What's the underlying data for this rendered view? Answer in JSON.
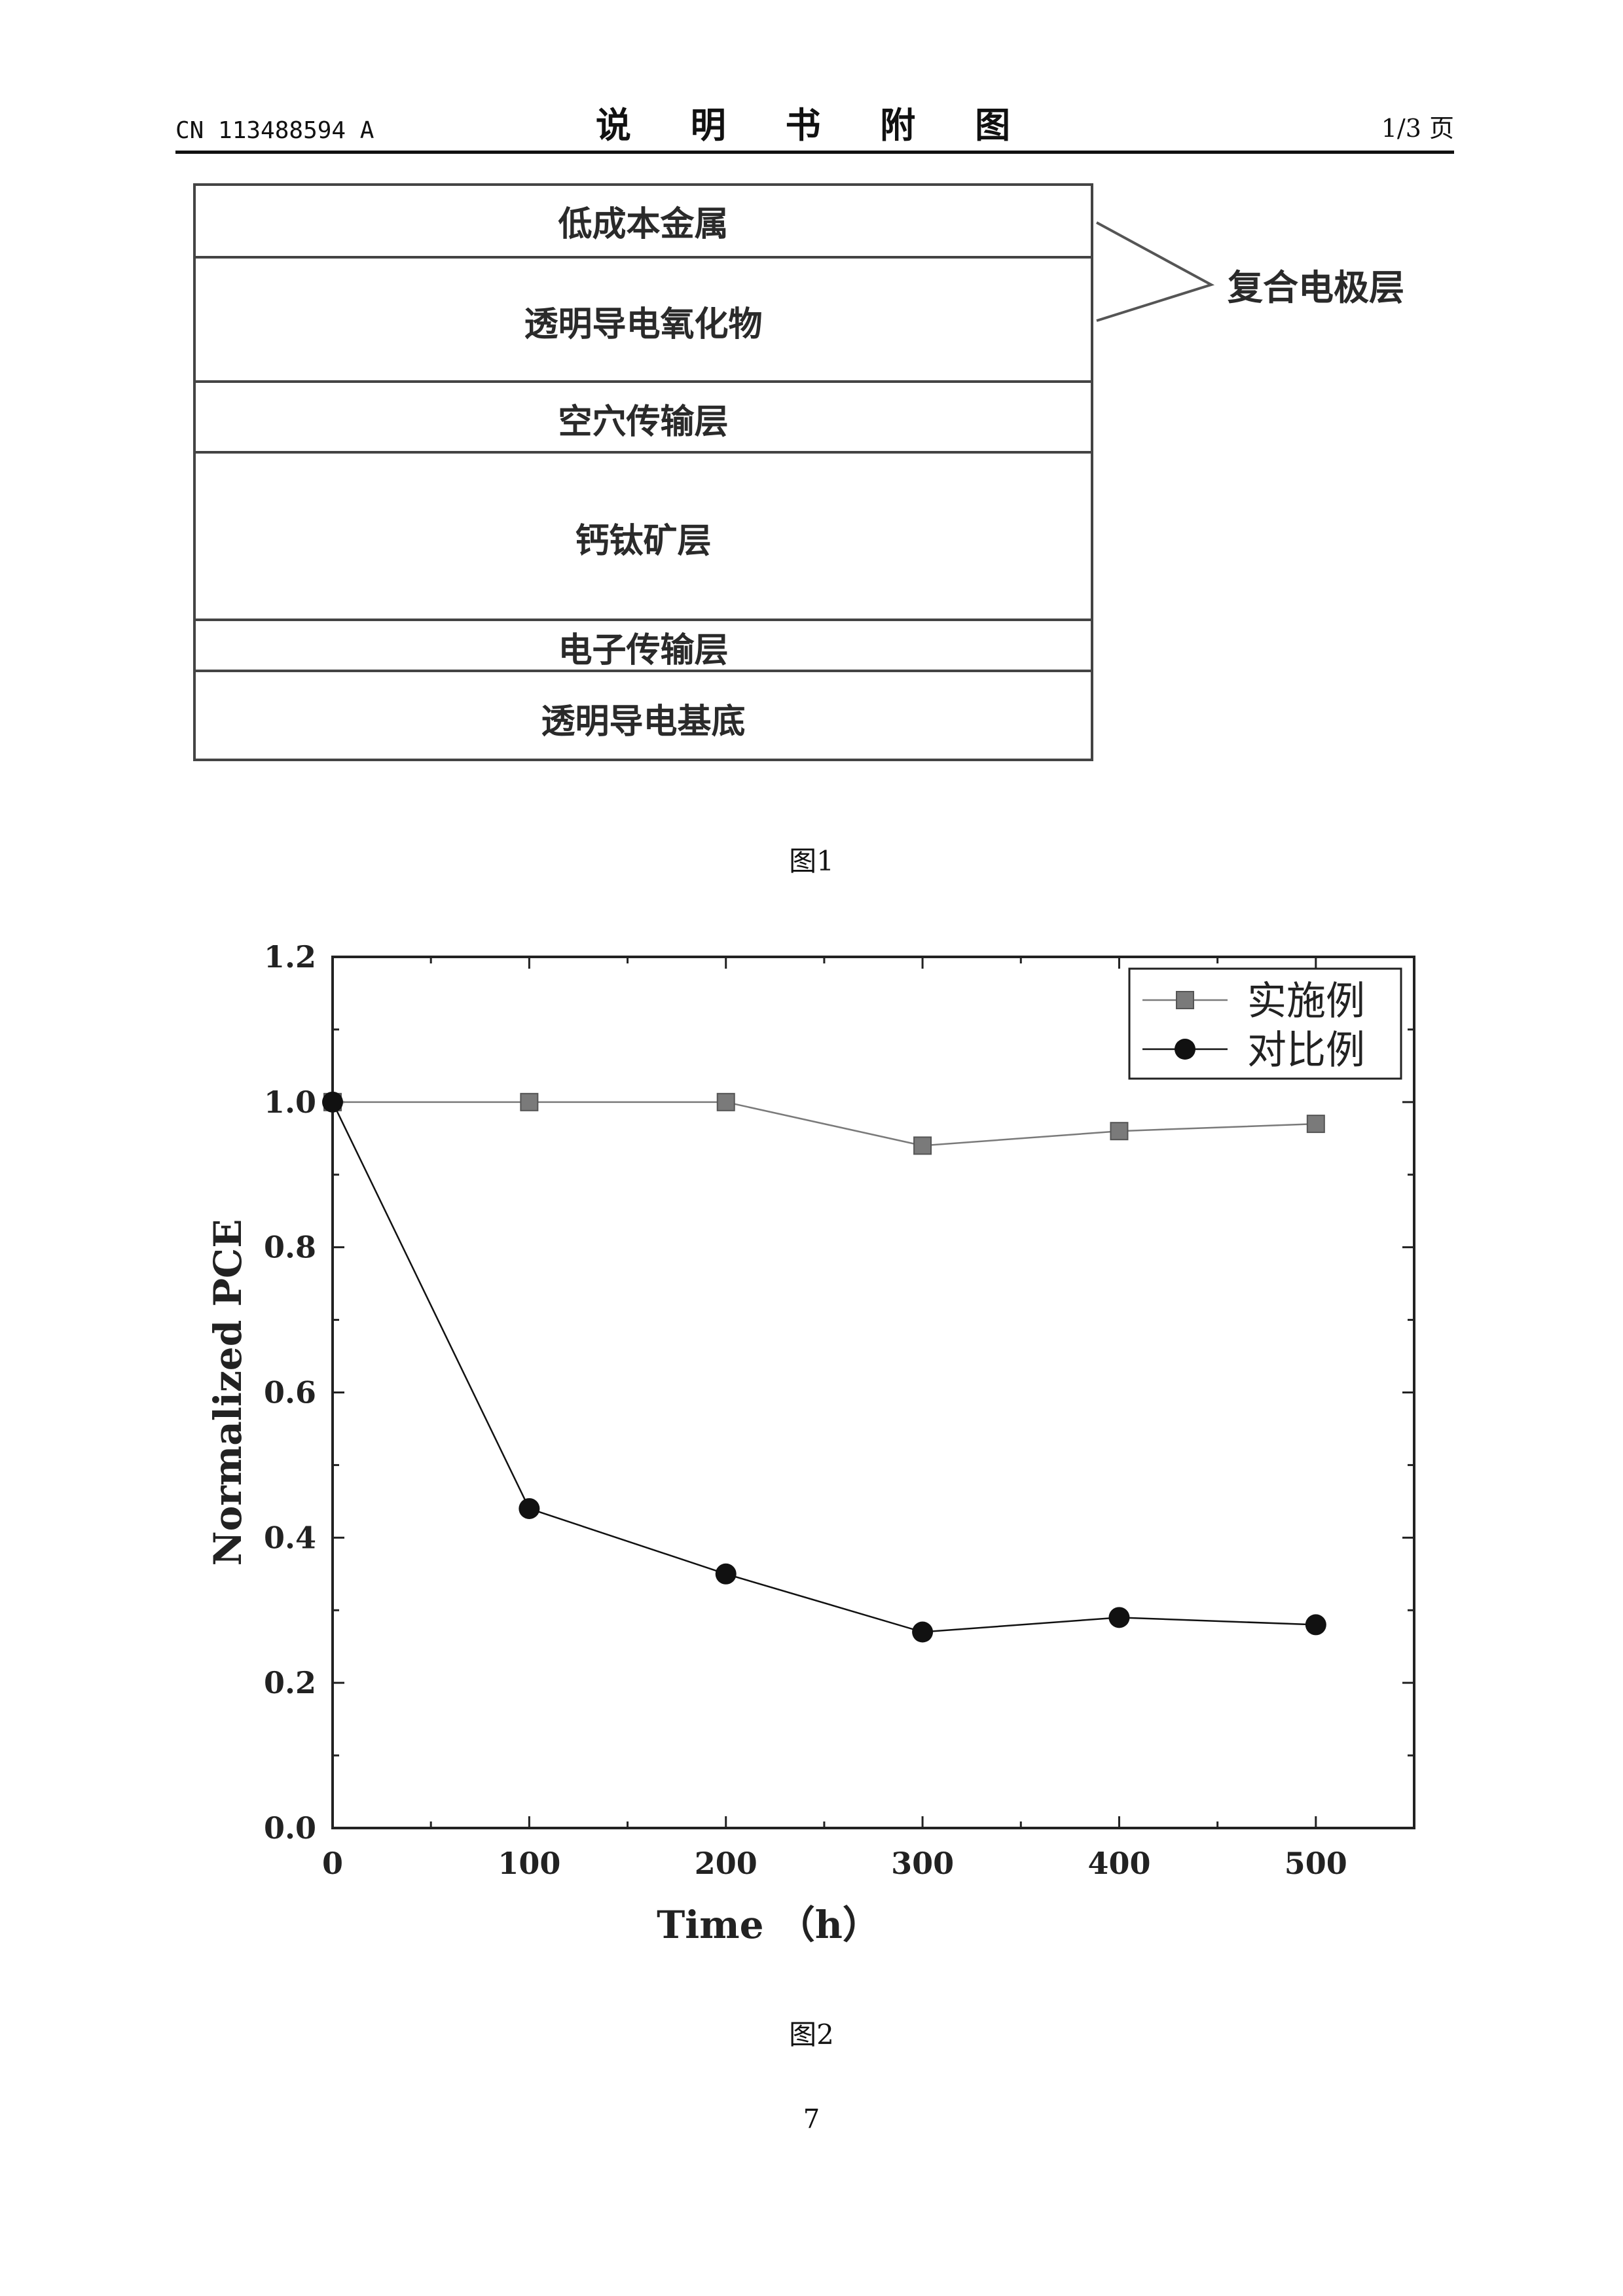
{
  "header": {
    "publication_number": "CN 113488594 A",
    "section_title": "说 明 书 附 图",
    "page_indicator": "1/3 页"
  },
  "figure1": {
    "caption": "图1",
    "layers": [
      "低成本金属",
      "透明导电氧化物",
      "空穴传输层",
      "钙钛矿层",
      "电子传输层",
      "透明导电基底"
    ],
    "callout_label": "复合电极层"
  },
  "figure2": {
    "caption": "图2",
    "chart_data": {
      "type": "line",
      "x": [
        0,
        100,
        200,
        300,
        400,
        500
      ],
      "series": [
        {
          "name": "实施例",
          "marker": "square",
          "color": "#7a7a7a",
          "values": [
            1.0,
            1.0,
            1.0,
            0.94,
            0.96,
            0.97
          ]
        },
        {
          "name": "对比例",
          "marker": "circle",
          "color": "#111111",
          "values": [
            1.0,
            0.44,
            0.35,
            0.27,
            0.29,
            0.28
          ]
        }
      ],
      "xlabel": "Time （h）",
      "ylabel": "Normalized PCE",
      "xlim": [
        0,
        550
      ],
      "ylim": [
        0.0,
        1.2
      ],
      "xticks": [
        "0",
        "100",
        "200",
        "300",
        "400",
        "500"
      ],
      "yticks": [
        "0.0",
        "0.2",
        "0.4",
        "0.6",
        "0.8",
        "1.0",
        "1.2"
      ],
      "grid": false,
      "legend_position": "top-right"
    }
  },
  "footer": {
    "page_number": "7"
  }
}
